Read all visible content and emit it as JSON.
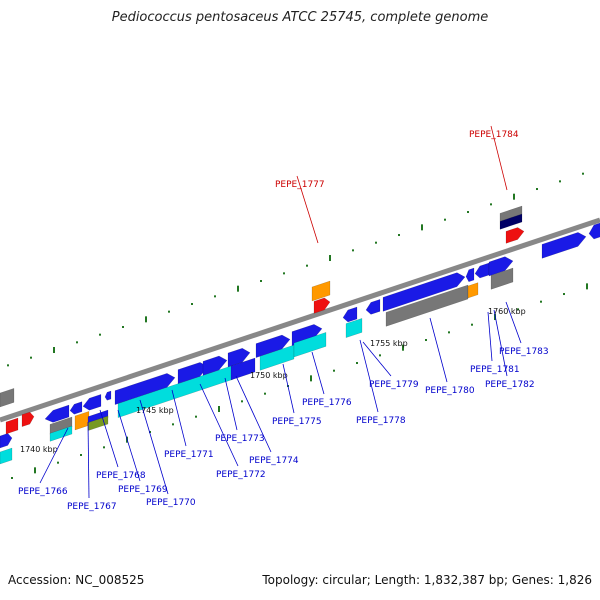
{
  "title": "Pediococcus pentosaceus ATCC 25745, complete genome",
  "accession": "Accession: NC_008525",
  "summary": "Topology: circular; Length: 1,832,387 bp; Genes: 1,826",
  "colors": {
    "backbone": "#888888",
    "gene_blue": "#1a1ae6",
    "gene_cyan": "#00dddd",
    "gene_gray": "#777777",
    "gene_red": "#ee1111",
    "gene_orange": "#ff9900",
    "gene_olive": "#779922",
    "gene_navy": "#000066",
    "label_blue": "#0000cc",
    "label_red": "#cc0000",
    "dots_green": "#227722"
  },
  "ruler_ticks": [
    "1740 kbp",
    "1745 kbp",
    "1750 kbp",
    "1755 kbp",
    "1760 kbp"
  ],
  "gene_labels": [
    {
      "text": "PEPE_1766",
      "color": "blue"
    },
    {
      "text": "PEPE_1767",
      "color": "blue"
    },
    {
      "text": "PEPE_1768",
      "color": "blue"
    },
    {
      "text": "PEPE_1769",
      "color": "blue"
    },
    {
      "text": "PEPE_1770",
      "color": "blue"
    },
    {
      "text": "PEPE_1771",
      "color": "blue"
    },
    {
      "text": "PEPE_1772",
      "color": "blue"
    },
    {
      "text": "PEPE_1773",
      "color": "blue"
    },
    {
      "text": "PEPE_1774",
      "color": "blue"
    },
    {
      "text": "PEPE_1775",
      "color": "blue"
    },
    {
      "text": "PEPE_1776",
      "color": "blue"
    },
    {
      "text": "PEPE_1777",
      "color": "red"
    },
    {
      "text": "PEPE_1778",
      "color": "blue"
    },
    {
      "text": "PEPE_1779",
      "color": "blue"
    },
    {
      "text": "PEPE_1780",
      "color": "blue"
    },
    {
      "text": "PEPE_1781",
      "color": "blue"
    },
    {
      "text": "PEPE_1782",
      "color": "blue"
    },
    {
      "text": "PEPE_1783",
      "color": "blue"
    },
    {
      "text": "PEPE_1784",
      "color": "red"
    }
  ]
}
